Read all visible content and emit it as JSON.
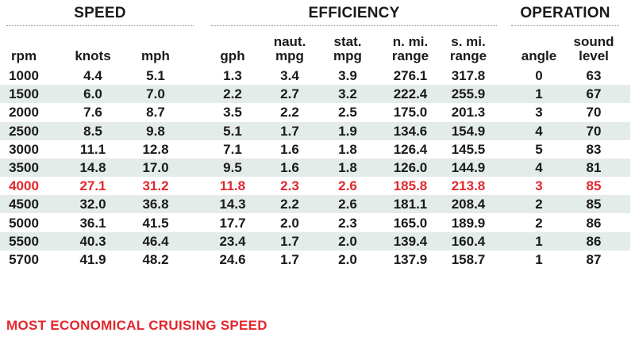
{
  "groups": {
    "speed": "SPEED",
    "efficiency": "EFFICIENCY",
    "operation": "OPERATION"
  },
  "columns": [
    {
      "key": "rpm",
      "label": "rpm"
    },
    {
      "key": "knots",
      "label": "knots"
    },
    {
      "key": "mph",
      "label": "mph"
    },
    {
      "key": "gph",
      "label": "gph"
    },
    {
      "key": "naut_mpg",
      "label": "naut.\nmpg"
    },
    {
      "key": "stat_mpg",
      "label": "stat.\nmpg"
    },
    {
      "key": "n_mi_range",
      "label": "n. mi.\nrange"
    },
    {
      "key": "s_mi_range",
      "label": "s. mi.\nrange"
    },
    {
      "key": "angle",
      "label": "angle"
    },
    {
      "key": "sound_level",
      "label": "sound\nlevel"
    }
  ],
  "rows": [
    [
      "1000",
      "4.4",
      "5.1",
      "1.3",
      "3.4",
      "3.9",
      "276.1",
      "317.8",
      "0",
      "63"
    ],
    [
      "1500",
      "6.0",
      "7.0",
      "2.2",
      "2.7",
      "3.2",
      "222.4",
      "255.9",
      "1",
      "67"
    ],
    [
      "2000",
      "7.6",
      "8.7",
      "3.5",
      "2.2",
      "2.5",
      "175.0",
      "201.3",
      "3",
      "70"
    ],
    [
      "2500",
      "8.5",
      "9.8",
      "5.1",
      "1.7",
      "1.9",
      "134.6",
      "154.9",
      "4",
      "70"
    ],
    [
      "3000",
      "11.1",
      "12.8",
      "7.1",
      "1.6",
      "1.8",
      "126.4",
      "145.5",
      "5",
      "83"
    ],
    [
      "3500",
      "14.8",
      "17.0",
      "9.5",
      "1.6",
      "1.8",
      "126.0",
      "144.9",
      "4",
      "81"
    ],
    [
      "4000",
      "27.1",
      "31.2",
      "11.8",
      "2.3",
      "2.6",
      "185.8",
      "213.8",
      "3",
      "85"
    ],
    [
      "4500",
      "32.0",
      "36.8",
      "14.3",
      "2.2",
      "2.6",
      "181.1",
      "208.4",
      "2",
      "85"
    ],
    [
      "5000",
      "36.1",
      "41.5",
      "17.7",
      "2.0",
      "2.3",
      "165.0",
      "189.9",
      "2",
      "86"
    ],
    [
      "5500",
      "40.3",
      "46.4",
      "23.4",
      "1.7",
      "2.0",
      "139.4",
      "160.4",
      "1",
      "86"
    ],
    [
      "5700",
      "41.9",
      "48.2",
      "24.6",
      "1.7",
      "2.0",
      "137.9",
      "158.7",
      "1",
      "87"
    ]
  ],
  "highlight_row_rpm": "4000",
  "footnote": "MOST ECONOMICAL CRUISING SPEED",
  "colors": {
    "highlight": "#e3262c",
    "row_shade": "#e4ecea",
    "text": "#1a1a1a"
  }
}
